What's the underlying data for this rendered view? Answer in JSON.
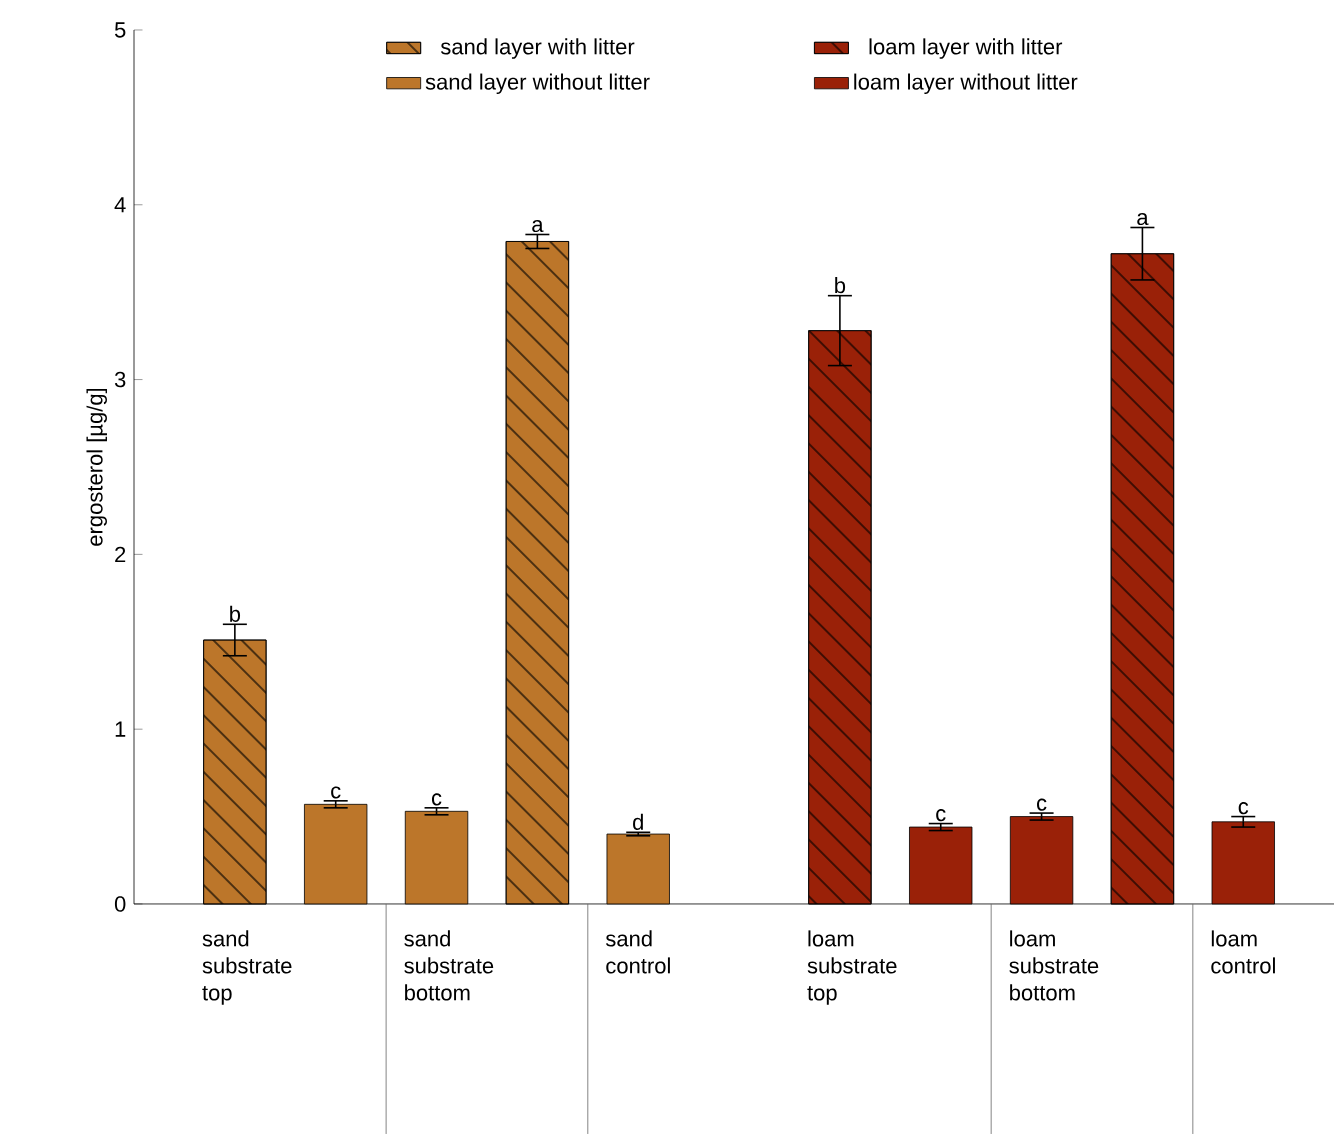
{
  "chart_data": {
    "type": "bar",
    "ylabel": "ergosterol [µg/g]",
    "categories": [
      "sand substrate top",
      null,
      "sand substrate bottom",
      null,
      "sand control",
      null,
      "loam substrate top",
      null,
      "loam substrate bottom",
      null,
      "loam control"
    ],
    "series": [
      {
        "name": "sand layer with litter",
        "color": "#bc762a",
        "values": [
          1.51,
          null,
          null,
          3.79,
          null,
          null,
          null,
          null,
          null,
          null,
          null
        ],
        "errors": [
          0.09,
          null,
          null,
          0.04,
          null,
          null,
          null,
          null,
          null,
          null,
          null
        ],
        "value_labels": [
          "b",
          null,
          null,
          "a",
          null,
          null,
          null,
          null,
          null,
          null,
          null
        ]
      },
      {
        "name": "sand layer without litter",
        "color": "#bc762a",
        "values": [
          null,
          0.57,
          0.53,
          null,
          0.4,
          null,
          null,
          null,
          null,
          null,
          null
        ],
        "errors": [
          null,
          0.02,
          0.02,
          null,
          0.01,
          null,
          null,
          null,
          null,
          null,
          null
        ],
        "value_labels": [
          null,
          "c",
          "c",
          null,
          "d",
          null,
          null,
          null,
          null,
          null,
          null
        ]
      },
      {
        "name": "loam layer with litter",
        "color": "#9a2108",
        "values": [
          null,
          null,
          null,
          null,
          null,
          null,
          3.28,
          null,
          null,
          3.72,
          null
        ],
        "errors": [
          null,
          null,
          null,
          null,
          null,
          null,
          0.2,
          null,
          null,
          0.15,
          null
        ],
        "value_labels": [
          null,
          null,
          null,
          null,
          null,
          null,
          "b",
          null,
          null,
          "a",
          null
        ]
      },
      {
        "name": "loam layer without litter",
        "color": "#9a2108",
        "values": [
          null,
          null,
          null,
          null,
          null,
          null,
          null,
          0.44,
          0.5,
          null,
          0.47
        ],
        "errors": [
          null,
          null,
          null,
          null,
          null,
          null,
          null,
          0.02,
          0.02,
          null,
          0.03
        ],
        "value_labels": [
          null,
          null,
          null,
          null,
          null,
          null,
          null,
          "c",
          "c",
          null,
          "c"
        ]
      }
    ],
    "ylim": [
      0,
      5
    ],
    "yticks": [
      0,
      1,
      2,
      3,
      4,
      5
    ],
    "grid": false,
    "legend": "top"
  }
}
